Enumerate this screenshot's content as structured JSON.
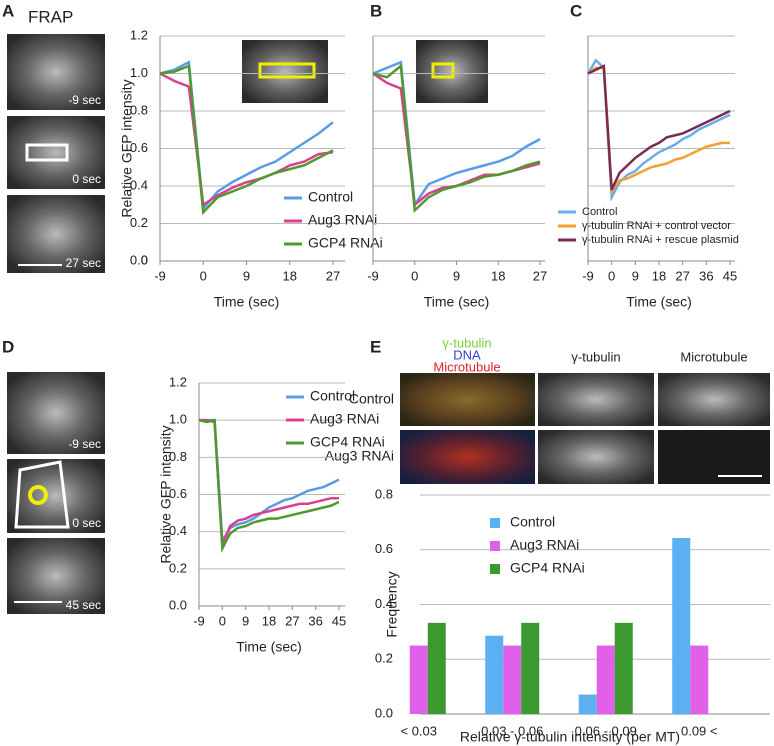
{
  "figure": {
    "panels": [
      "A",
      "B",
      "C",
      "D",
      "E"
    ],
    "frap": "FRAP",
    "times_a": [
      "-9 sec",
      "0 sec",
      "27 sec"
    ],
    "times_d": [
      "-9 sec",
      "0 sec",
      "45 sec"
    ],
    "e_channels": [
      "γ-tubulin",
      "DNA",
      "Microtubule"
    ],
    "e_columns": [
      "γ-tubulin",
      "Microtubule"
    ],
    "e_rows": [
      "Control",
      "Aug3 RNAi"
    ]
  },
  "chart_data": [
    {
      "type": "line",
      "x_label": "Time (sec)",
      "y_label": "Relative GFP intensity",
      "legend": true,
      "ytick_labels": true,
      "x": [
        -9,
        -6,
        -3,
        0,
        3,
        6,
        9,
        12,
        15,
        18,
        21,
        24,
        27
      ],
      "xlim": [
        -9,
        27
      ],
      "xticks": [
        -9,
        0,
        9,
        18,
        27
      ],
      "ylim": [
        0,
        1.2
      ],
      "yticks": [
        0,
        {
          "value": 0.2,
          "label": "0.2"
        },
        {
          "value": 0.4,
          "label": "0.4"
        },
        {
          "value": 0.6,
          "label": "0.6"
        },
        {
          "value": 0.8,
          "label": "0.8"
        },
        {
          "value": 1,
          "label": "1.0"
        },
        {
          "value": 1.2,
          "label": "1.2"
        },
        {
          "value": 0,
          "label": "0.0"
        }
      ],
      "series": [
        {
          "name": "Control",
          "color": "#5a9be8",
          "values": [
            1.0,
            1.02,
            1.06,
            0.28,
            0.37,
            0.42,
            0.46,
            0.5,
            0.53,
            0.58,
            0.63,
            0.68,
            0.74
          ]
        },
        {
          "name": "Aug3 RNAi",
          "color": "#d9418f",
          "values": [
            1.0,
            0.96,
            0.93,
            0.3,
            0.35,
            0.39,
            0.42,
            0.44,
            0.47,
            0.51,
            0.53,
            0.57,
            0.58
          ]
        },
        {
          "name": "GCP4 RNAi",
          "color": "#4f9a2e",
          "values": [
            1.0,
            1.01,
            1.04,
            0.26,
            0.34,
            0.37,
            0.4,
            0.44,
            0.47,
            0.49,
            0.51,
            0.55,
            0.59
          ]
        }
      ]
    },
    {
      "type": "line",
      "x_label": "Time (sec)",
      "legend": false,
      "ytick_labels": false,
      "x": [
        -9,
        -6,
        -3,
        0,
        3,
        6,
        9,
        12,
        15,
        18,
        21,
        24,
        27
      ],
      "xlim": [
        -9,
        27
      ],
      "xticks": [
        -9,
        0,
        9,
        18,
        27
      ],
      "ylim": [
        0,
        1.2
      ],
      "yticks": [
        0,
        0.2,
        0.4,
        0.6,
        0.8,
        1,
        1.2
      ],
      "series": [
        {
          "name": "Control",
          "color": "#5a9be8",
          "values": [
            1.0,
            1.03,
            1.06,
            0.3,
            0.41,
            0.44,
            0.47,
            0.49,
            0.51,
            0.53,
            0.56,
            0.61,
            0.65
          ]
        },
        {
          "name": "Aug3 RNAi",
          "color": "#d9418f",
          "values": [
            1.0,
            0.95,
            0.92,
            0.3,
            0.36,
            0.39,
            0.4,
            0.43,
            0.46,
            0.46,
            0.48,
            0.5,
            0.52
          ]
        },
        {
          "name": "GCP4 RNAi",
          "color": "#4f9a2e",
          "values": [
            1.0,
            0.98,
            1.04,
            0.27,
            0.34,
            0.38,
            0.4,
            0.42,
            0.45,
            0.46,
            0.48,
            0.51,
            0.53
          ]
        }
      ]
    },
    {
      "type": "line",
      "x_label": "Time (sec)",
      "legend": true,
      "ytick_labels": false,
      "x": [
        -9,
        -6,
        -3,
        0,
        3,
        6,
        9,
        12,
        15,
        18,
        21,
        24,
        27,
        30,
        33,
        36,
        39,
        42,
        45
      ],
      "xlim": [
        -9,
        45
      ],
      "xticks": [
        -9,
        0,
        9,
        18,
        27,
        36,
        45
      ],
      "ylim": [
        0,
        1.2
      ],
      "yticks": [
        0,
        0.2,
        0.4,
        0.6,
        0.8,
        1,
        1.2
      ],
      "series": [
        {
          "name": "Control",
          "color": "#6aaee8",
          "values": [
            1.0,
            1.07,
            1.03,
            0.34,
            0.42,
            0.46,
            0.48,
            0.52,
            0.55,
            0.58,
            0.6,
            0.62,
            0.65,
            0.67,
            0.7,
            0.72,
            0.74,
            0.76,
            0.78
          ]
        },
        {
          "name": "γ-tubulin RNAi + control vector",
          "color": "#f0a030",
          "values": [
            1.0,
            1.03,
            1.03,
            0.37,
            0.43,
            0.44,
            0.46,
            0.48,
            0.5,
            0.51,
            0.52,
            0.54,
            0.55,
            0.57,
            0.59,
            0.61,
            0.62,
            0.63,
            0.63
          ]
        },
        {
          "name": "γ-tubulin RNAi + rescue plasmid",
          "color": "#7b2a55",
          "values": [
            1.0,
            1.02,
            1.04,
            0.38,
            0.47,
            0.51,
            0.55,
            0.58,
            0.61,
            0.63,
            0.66,
            0.67,
            0.68,
            0.7,
            0.72,
            0.74,
            0.76,
            0.78,
            0.8
          ]
        }
      ]
    },
    {
      "type": "line",
      "x_label": "Time (sec)",
      "y_label": "Relative GFP intensity",
      "legend": true,
      "ytick_labels": true,
      "x": [
        -9,
        -6,
        -3,
        0,
        3,
        6,
        9,
        12,
        15,
        18,
        21,
        24,
        27,
        30,
        33,
        36,
        39,
        42,
        45
      ],
      "xlim": [
        -9,
        45
      ],
      "xticks": [
        -9,
        0,
        9,
        18,
        27,
        36,
        45
      ],
      "ylim": [
        0,
        1.2
      ],
      "yticks": [
        {
          "value": 0,
          "label": "0.0"
        },
        {
          "value": 0.2,
          "label": "0.2"
        },
        {
          "value": 0.4,
          "label": "0.4"
        },
        {
          "value": 0.6,
          "label": "0.6"
        },
        {
          "value": 0.8,
          "label": "0.8"
        },
        {
          "value": 1,
          "label": "1.0"
        },
        {
          "value": 1.2,
          "label": "1.2"
        }
      ],
      "series": [
        {
          "name": "Control",
          "color": "#5a9be8",
          "values": [
            1.0,
            1.0,
            1.0,
            0.35,
            0.42,
            0.44,
            0.45,
            0.47,
            0.5,
            0.53,
            0.55,
            0.57,
            0.58,
            0.6,
            0.62,
            0.63,
            0.64,
            0.66,
            0.68
          ]
        },
        {
          "name": "Aug3 RNAi",
          "color": "#d9418f",
          "values": [
            1.0,
            1.0,
            0.99,
            0.33,
            0.43,
            0.46,
            0.47,
            0.49,
            0.5,
            0.51,
            0.52,
            0.53,
            0.54,
            0.55,
            0.55,
            0.56,
            0.57,
            0.58,
            0.58
          ]
        },
        {
          "name": "GCP4 RNAi",
          "color": "#4f9a2e",
          "values": [
            1.0,
            0.99,
            1.0,
            0.31,
            0.39,
            0.42,
            0.43,
            0.45,
            0.46,
            0.47,
            0.47,
            0.48,
            0.49,
            0.5,
            0.51,
            0.52,
            0.53,
            0.54,
            0.56
          ]
        }
      ]
    },
    {
      "type": "bar",
      "x_label": "Relative γ-tubulin intensity (per MT)",
      "y_label": "Frequency",
      "legend": true,
      "ytick_labels": true,
      "categories": [
        "< 0.03",
        "0.03 - 0.06",
        "0.06 - 0.09",
        "0.09 <"
      ],
      "ylim": [
        0,
        0.8
      ],
      "yticks": [
        {
          "value": 0,
          "label": "0.0"
        },
        {
          "value": 0.2,
          "label": "0.2"
        },
        {
          "value": 0.4,
          "label": "0.4"
        },
        {
          "value": 0.6,
          "label": "0.6"
        },
        {
          "value": 0.8,
          "label": "0.8"
        }
      ],
      "series": [
        {
          "name": "Control",
          "color": "#5ab0f0",
          "values": [
            0,
            0.286,
            0.071,
            0.643
          ]
        },
        {
          "name": "Aug3 RNAi",
          "color": "#e060e8",
          "values": [
            0.25,
            0.25,
            0.25,
            0.25
          ]
        },
        {
          "name": "GCP4 RNAi",
          "color": "#3a9a30",
          "values": [
            0.333,
            0.333,
            0.333,
            0
          ]
        }
      ]
    }
  ]
}
